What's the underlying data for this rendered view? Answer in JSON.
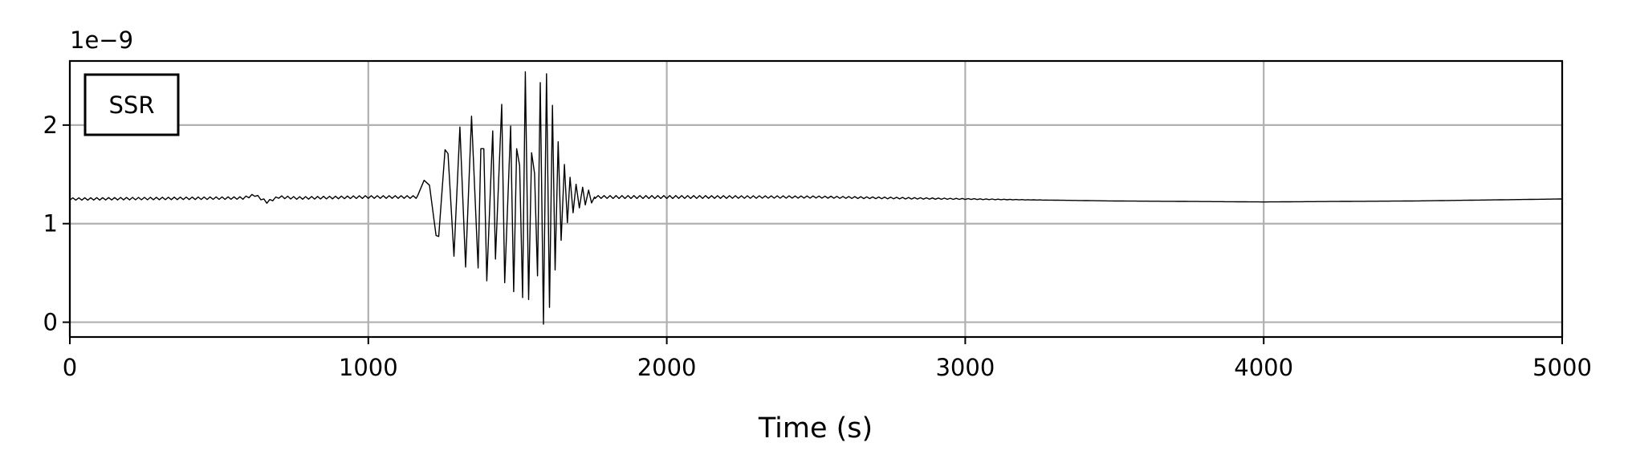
{
  "chart_data": {
    "type": "line",
    "title": "",
    "xlabel": "Time (s)",
    "ylabel": "",
    "y_offset_text": "1e−9",
    "xlim": [
      0,
      5000
    ],
    "ylim": [
      -0.15,
      2.65
    ],
    "x_ticks": [
      0,
      1000,
      2000,
      3000,
      4000,
      5000
    ],
    "x_tick_labels": [
      "0",
      "1000",
      "2000",
      "3000",
      "4000",
      "5000"
    ],
    "y_ticks": [
      0,
      1,
      2
    ],
    "y_tick_labels": [
      "0",
      "1",
      "2"
    ],
    "grid": true,
    "legend": {
      "position": "top-left",
      "entries": [
        "SSR"
      ]
    },
    "line_color": "#000000",
    "grid_color": "#b0b0b0",
    "series": [
      {
        "name": "SSR",
        "baseline": {
          "x": [
            0,
            580,
            620,
            660,
            700,
            760,
            1000,
            1150,
            1500,
            2000,
            2500,
            3000,
            3500,
            4000,
            4500,
            5000
          ],
          "y": [
            1.25,
            1.26,
            1.29,
            1.22,
            1.27,
            1.26,
            1.27,
            1.27,
            1.27,
            1.27,
            1.27,
            1.25,
            1.23,
            1.22,
            1.23,
            1.25
          ]
        },
        "ripple_amplitude": [
          {
            "x": 0,
            "a": 0.012
          },
          {
            "x": 2000,
            "a": 0.015
          },
          {
            "x": 2800,
            "a": 0.008
          },
          {
            "x": 3300,
            "a": 0.0
          },
          {
            "x": 5000,
            "a": 0.0
          }
        ],
        "burst": {
          "x": [
            1165,
            1187,
            1205,
            1227,
            1236,
            1257,
            1267,
            1287,
            1307,
            1326,
            1346,
            1368,
            1377,
            1387,
            1397,
            1417,
            1426,
            1447,
            1457,
            1477,
            1487,
            1497,
            1507,
            1517,
            1526,
            1537,
            1547,
            1557,
            1567,
            1576,
            1587,
            1597,
            1607,
            1617,
            1626,
            1636,
            1646,
            1657,
            1667,
            1676,
            1686,
            1696,
            1707,
            1718,
            1727,
            1738,
            1748,
            1758
          ],
          "y": [
            1.28,
            1.44,
            1.39,
            0.88,
            0.87,
            1.75,
            1.71,
            0.67,
            1.98,
            0.56,
            2.09,
            0.55,
            1.76,
            1.76,
            0.42,
            1.94,
            0.64,
            2.21,
            0.4,
            1.99,
            0.31,
            1.76,
            1.59,
            0.25,
            2.54,
            0.23,
            1.72,
            1.51,
            0.47,
            2.43,
            -0.02,
            2.52,
            0.15,
            2.2,
            0.53,
            1.83,
            0.83,
            1.6,
            1.01,
            1.47,
            1.11,
            1.4,
            1.16,
            1.37,
            1.19,
            1.34,
            1.21,
            1.27
          ]
        }
      }
    ]
  }
}
